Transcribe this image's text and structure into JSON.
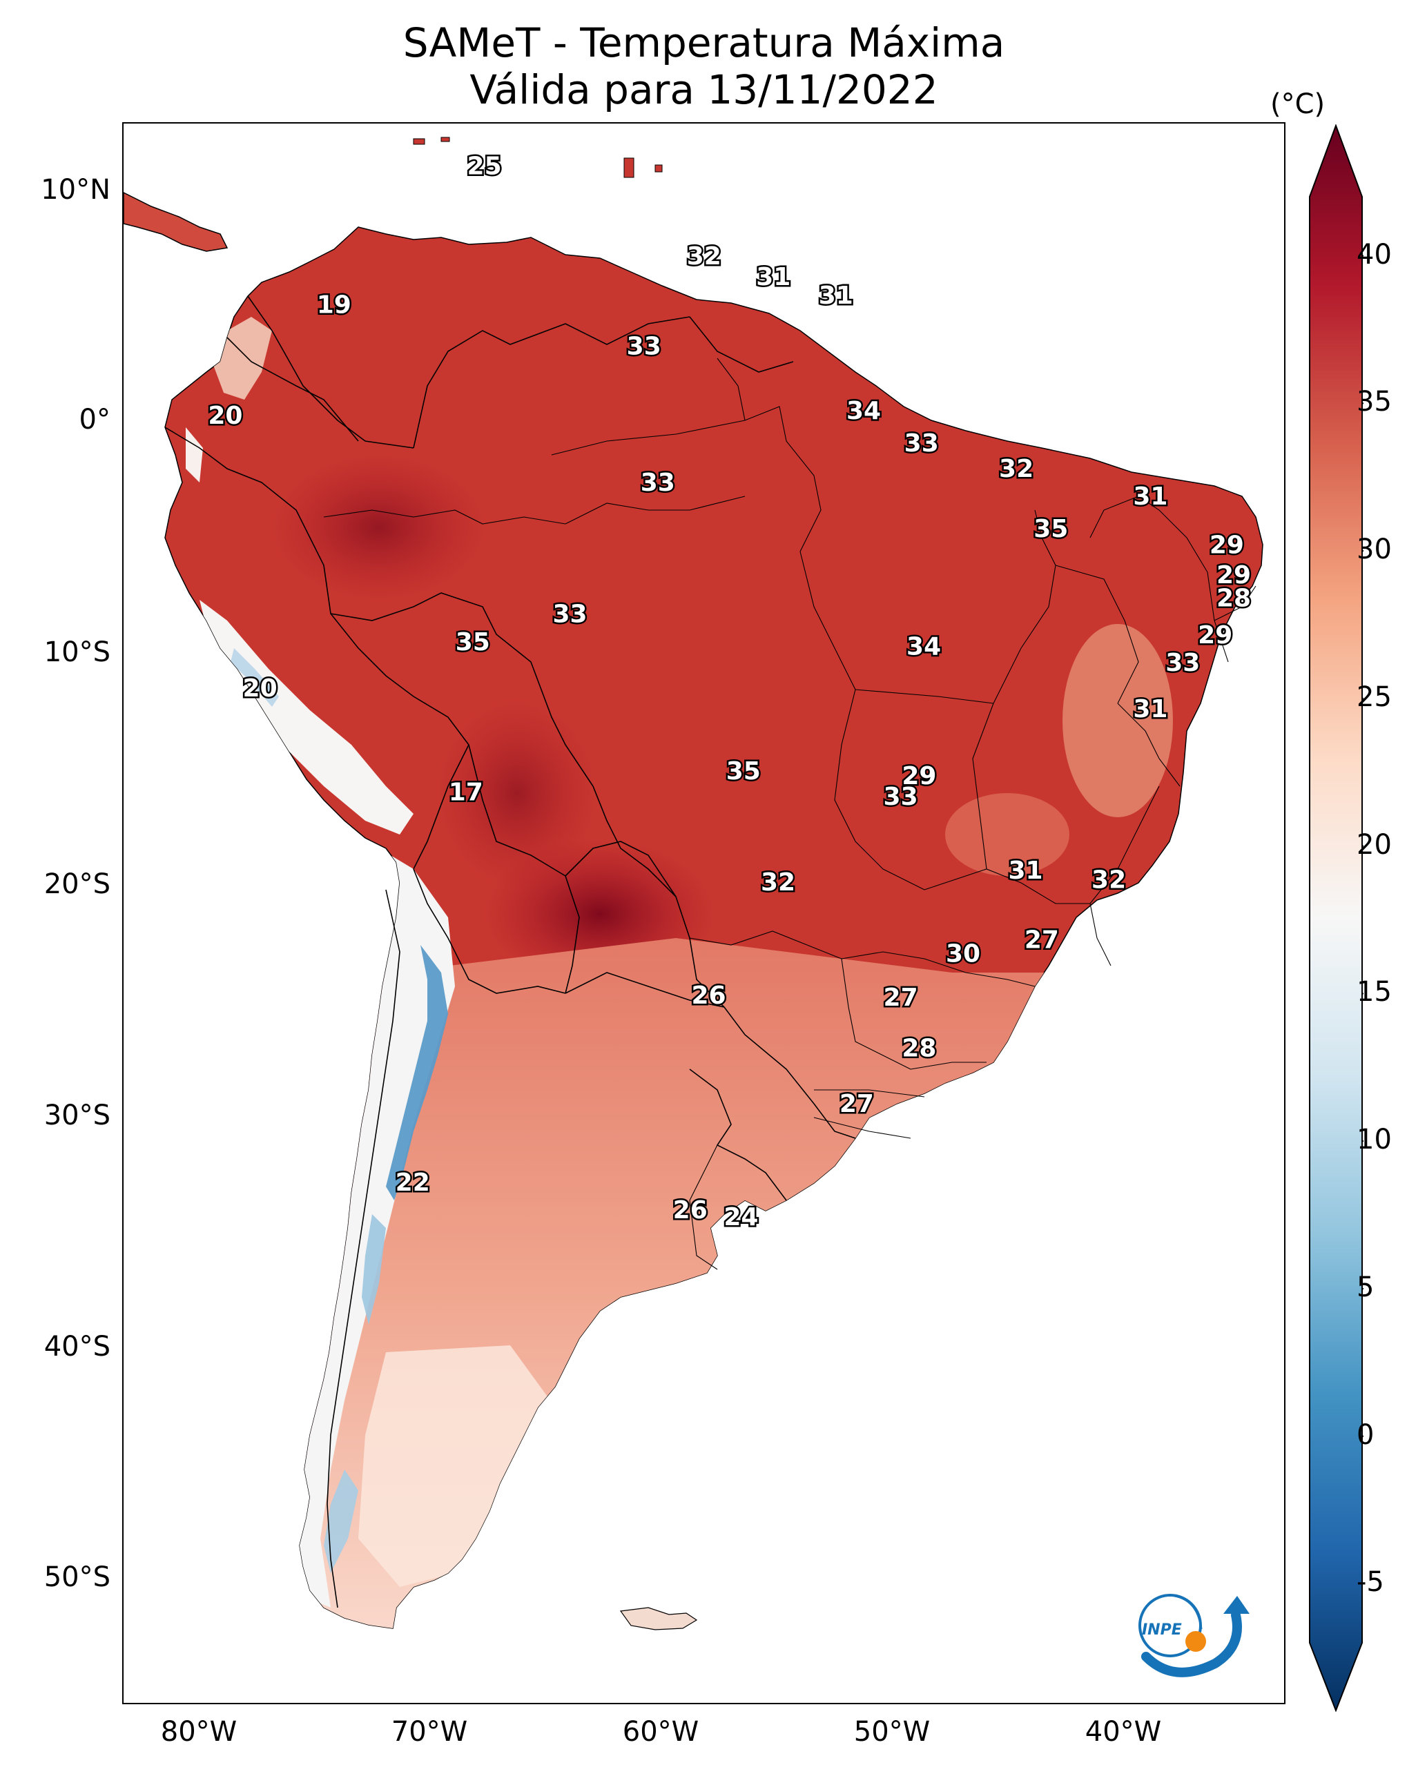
{
  "title": {
    "line1": "SAMeT - Temperatura Máxima",
    "line2": "Válida para 13/11/2022"
  },
  "map": {
    "lat_labels": [
      "10°N",
      "0°",
      "10°S",
      "20°S",
      "30°S",
      "40°S",
      "50°S"
    ],
    "lon_labels": [
      "80°W",
      "70°W",
      "60°W",
      "50°W",
      "40°W"
    ],
    "point_values": [
      {
        "label": "25",
        "lon": -67.3,
        "lat": 10.6
      },
      {
        "label": "32",
        "lon": -57.8,
        "lat": 6.7
      },
      {
        "label": "31",
        "lon": -54.8,
        "lat": 5.8
      },
      {
        "label": "31",
        "lon": -52.1,
        "lat": 5.0
      },
      {
        "label": "19",
        "lon": -73.8,
        "lat": 4.6
      },
      {
        "label": "33",
        "lon": -60.4,
        "lat": 2.8
      },
      {
        "label": "34",
        "lon": -50.9,
        "lat": 0.0
      },
      {
        "label": "20",
        "lon": -78.5,
        "lat": -0.2
      },
      {
        "label": "33",
        "lon": -48.4,
        "lat": -1.4
      },
      {
        "label": "32",
        "lon": -44.3,
        "lat": -2.5
      },
      {
        "label": "33",
        "lon": -59.8,
        "lat": -3.1
      },
      {
        "label": "31",
        "lon": -38.5,
        "lat": -3.7
      },
      {
        "label": "35",
        "lon": -42.8,
        "lat": -5.1
      },
      {
        "label": "29",
        "lon": -35.2,
        "lat": -5.8
      },
      {
        "label": "29",
        "lon": -34.9,
        "lat": -7.1
      },
      {
        "label": "28",
        "lon": -34.9,
        "lat": -8.1
      },
      {
        "label": "33",
        "lon": -63.6,
        "lat": -8.8
      },
      {
        "label": "29",
        "lon": -35.7,
        "lat": -9.7
      },
      {
        "label": "35",
        "lon": -67.8,
        "lat": -10.0
      },
      {
        "label": "34",
        "lon": -48.3,
        "lat": -10.2
      },
      {
        "label": "33",
        "lon": -37.1,
        "lat": -10.9
      },
      {
        "label": "20",
        "lon": -77.0,
        "lat": -12.0
      },
      {
        "label": "31",
        "lon": -38.5,
        "lat": -12.9
      },
      {
        "label": "35",
        "lon": -56.1,
        "lat": -15.6
      },
      {
        "label": "29",
        "lon": -48.5,
        "lat": -15.8
      },
      {
        "label": "17",
        "lon": -68.1,
        "lat": -16.5
      },
      {
        "label": "33",
        "lon": -49.3,
        "lat": -16.7
      },
      {
        "label": "31",
        "lon": -43.9,
        "lat": -19.9
      },
      {
        "label": "32",
        "lon": -40.3,
        "lat": -20.3
      },
      {
        "label": "32",
        "lon": -54.6,
        "lat": -20.4
      },
      {
        "label": "27",
        "lon": -43.2,
        "lat": -22.9
      },
      {
        "label": "30",
        "lon": -46.6,
        "lat": -23.5
      },
      {
        "label": "26",
        "lon": -57.6,
        "lat": -25.3
      },
      {
        "label": "27",
        "lon": -49.3,
        "lat": -25.4
      },
      {
        "label": "28",
        "lon": -48.5,
        "lat": -27.6
      },
      {
        "label": "27",
        "lon": -51.2,
        "lat": -30.0
      },
      {
        "label": "22",
        "lon": -70.4,
        "lat": -33.4
      },
      {
        "label": "26",
        "lon": -58.4,
        "lat": -34.6
      },
      {
        "label": "24",
        "lon": -56.2,
        "lat": -34.9
      }
    ],
    "colors": {
      "hot": "#b2182b",
      "very_hot": "#7f0a1c",
      "warm": "#e6826a",
      "mild": "#fbe0d2",
      "cool": "#f5f5f5",
      "cold": "#6aa8d2",
      "very_cold": "#2c6aa8"
    }
  },
  "colorbar": {
    "unit": "(°C)",
    "ticks": [
      "40",
      "35",
      "30",
      "25",
      "20",
      "15",
      "10",
      "5",
      "0",
      "-5"
    ],
    "min": -7,
    "max": 42,
    "colors": [
      "#053061",
      "#2166ac",
      "#4393c3",
      "#92c5de",
      "#d1e5f0",
      "#f7f7f7",
      "#fddbc7",
      "#f4a582",
      "#d6604d",
      "#b2182b",
      "#67001f"
    ]
  },
  "logo": {
    "text": "INPE",
    "colors": {
      "blue": "#1673b8",
      "orange": "#f28a12"
    }
  }
}
